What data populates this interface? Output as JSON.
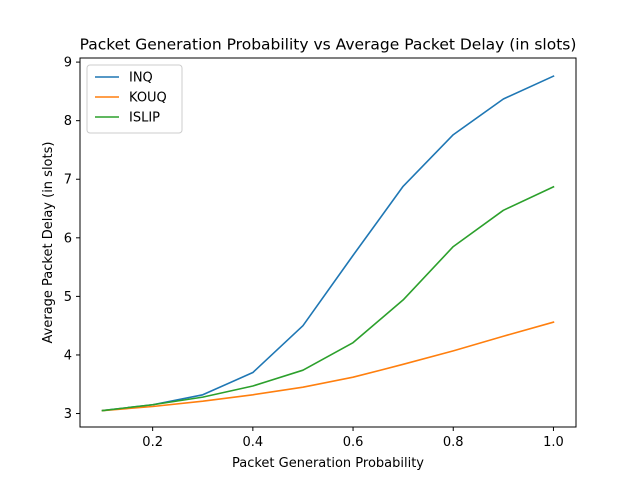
{
  "chart_data": {
    "type": "line",
    "title": "Packet Generation Probability vs Average Packet Delay (in slots)",
    "xlabel": "Packet Generation Probability",
    "ylabel": "Average Packet Delay (in slots)",
    "x": [
      0.1,
      0.2,
      0.3,
      0.4,
      0.5,
      0.6,
      0.7,
      0.8,
      0.9,
      1.0
    ],
    "xlim": [
      0.055,
      1.045
    ],
    "ylim": [
      2.77,
      9.07
    ],
    "xticks": [
      0.2,
      0.4,
      0.6,
      0.8,
      1.0
    ],
    "xtick_labels": [
      "0.2",
      "0.4",
      "0.6",
      "0.8",
      "1.0"
    ],
    "yticks": [
      3,
      4,
      5,
      6,
      7,
      8,
      9
    ],
    "ytick_labels": [
      "3",
      "4",
      "5",
      "6",
      "7",
      "8",
      "9"
    ],
    "grid": false,
    "legend_position": "top-left",
    "series": [
      {
        "name": "INQ",
        "color": "#1f77b4",
        "values": [
          3.05,
          3.15,
          3.32,
          3.7,
          4.5,
          5.7,
          6.88,
          7.76,
          8.37,
          8.76
        ]
      },
      {
        "name": "KOUQ",
        "color": "#ff7f0e",
        "values": [
          3.05,
          3.12,
          3.21,
          3.32,
          3.45,
          3.62,
          3.84,
          4.07,
          4.32,
          4.56
        ]
      },
      {
        "name": "ISLIP",
        "color": "#2ca02c",
        "values": [
          3.05,
          3.15,
          3.28,
          3.47,
          3.74,
          4.21,
          4.94,
          5.85,
          6.47,
          6.87
        ]
      }
    ]
  }
}
